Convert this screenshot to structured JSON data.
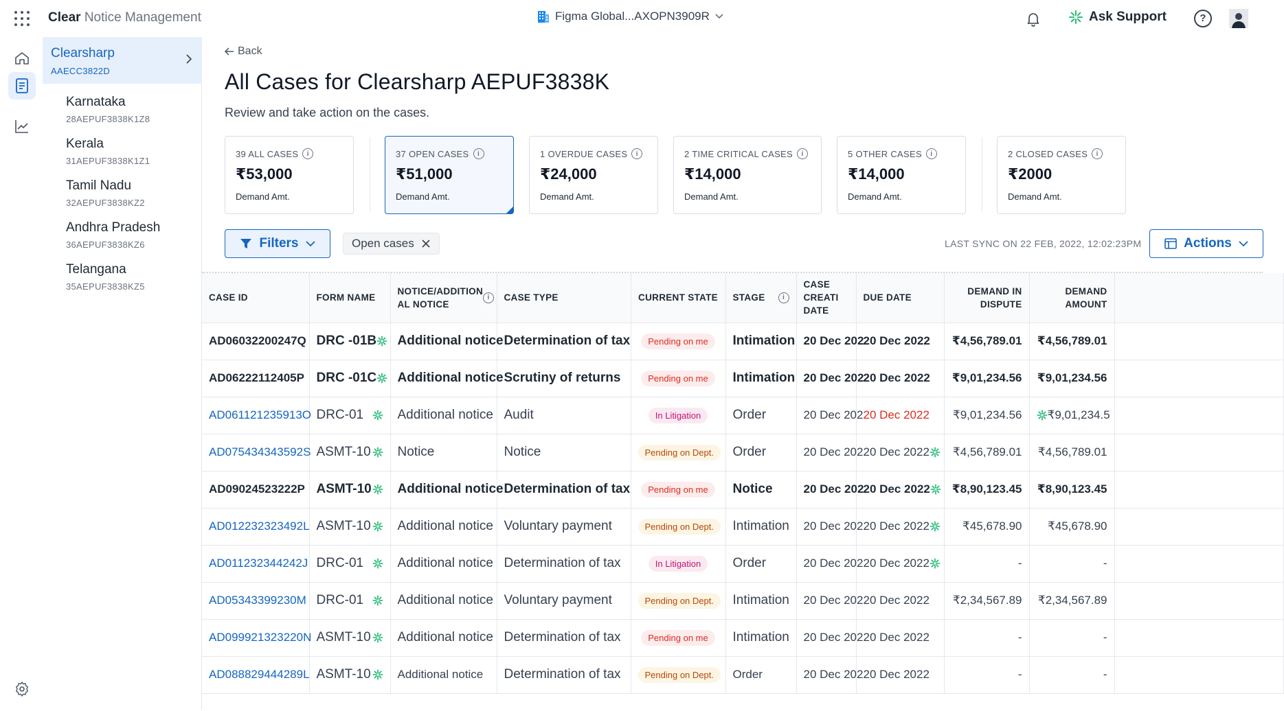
{
  "app": {
    "brand_bold": "Clear",
    "brand_light": "Notice Management",
    "org": "Figma Global...AXOPN3909R",
    "ask_support": "Ask Support",
    "help": "?"
  },
  "sidebar": {
    "active": {
      "name": "Clearsharp",
      "code": "AAECC3822D"
    },
    "states": [
      {
        "name": "Karnataka",
        "code": "28AEPUF3838K1Z8"
      },
      {
        "name": "Kerala",
        "code": "31AEPUF3838K1Z1"
      },
      {
        "name": "Tamil Nadu",
        "code": "32AEPUF3838KZ2"
      },
      {
        "name": "Andhra Pradesh",
        "code": "36AEPUF3838KZ6"
      },
      {
        "name": "Telangana",
        "code": "35AEPUF3838KZ5"
      }
    ]
  },
  "page": {
    "back": "Back",
    "title": "All Cases for Clearsharp AEPUF3838K",
    "subtitle": "Review and take action on the cases."
  },
  "cards": [
    {
      "label": "39 ALL CASES",
      "amount": "₹53,000",
      "sub": "Demand Amt."
    },
    {
      "label": "37 OPEN CASES",
      "amount": "₹51,000",
      "sub": "Demand Amt."
    },
    {
      "label": "1 OVERDUE CASES",
      "amount": "₹24,000",
      "sub": "Demand Amt."
    },
    {
      "label": "2 TIME CRITICAL CASES",
      "amount": "₹14,000",
      "sub": "Demand Amt."
    },
    {
      "label": "5 OTHER CASES",
      "amount": "₹14,000",
      "sub": "Demand Amt."
    },
    {
      "label": "2 CLOSED CASES",
      "amount": "₹2000",
      "sub": "Demand Amt."
    }
  ],
  "filterbar": {
    "filters": "Filters",
    "chip": "Open cases",
    "last_sync": "LAST SYNC ON 22 FEB, 2022, 12:02:23PM",
    "actions": "Actions"
  },
  "table": {
    "headers": {
      "case_id": "CASE ID",
      "form_name": "FORM NAME",
      "notice": "NOTICE/ADDITION AL NOTICE",
      "case_type": "CASE TYPE",
      "current_state": "CURRENT STATE",
      "stage": "STAGE",
      "creation_date": "CASE CREATI DATE",
      "due_date": "DUE DATE",
      "dispute": "DEMAND IN DISPUTE",
      "demand": "DEMAND AMOUNT"
    },
    "rows": [
      {
        "id": "AD06032200247Q",
        "form": "DRC -01B",
        "notice": "Additional notice",
        "type": "Determination of tax",
        "state": "Pending on me",
        "stage": "Intimation",
        "created": "20 Dec 202",
        "due": "20 Dec 2022",
        "dispute": "₹4,56,789.01",
        "demand": "₹4,56,789.01"
      },
      {
        "id": "AD06222112405P",
        "form": "DRC -01C",
        "notice": "Additional notice",
        "type": "Scrutiny of returns",
        "state": "Pending on me",
        "stage": "Intimation",
        "created": "20 Dec 202",
        "due": "20 Dec 2022",
        "dispute": "₹9,01,234.56",
        "demand": "₹9,01,234.56"
      },
      {
        "id": "AD061121235913O",
        "form": "DRC-01",
        "notice": "Additional notice",
        "type": "Audit",
        "state": "In Litigation",
        "stage": "Order",
        "created": "20 Dec 202",
        "due": "20 Dec 2022",
        "dispute": "₹9,01,234.56",
        "demand": "₹9,01,234.5"
      },
      {
        "id": "AD075434343592S",
        "form": "ASMT-10",
        "notice": "Notice",
        "type": "Notice",
        "state": "Pending on Dept.",
        "stage": "Order",
        "created": "20 Dec 202",
        "due": "20 Dec 2022",
        "dispute": "₹4,56,789.01",
        "demand": "₹4,56,789.01"
      },
      {
        "id": "AD09024523222P",
        "form": "ASMT-10",
        "notice": "Additional notice",
        "type": "Determination of tax",
        "state": "Pending on me",
        "stage": "Notice",
        "created": "20 Dec 202",
        "due": "20 Dec 2022",
        "dispute": "₹8,90,123.45",
        "demand": "₹8,90,123.45"
      },
      {
        "id": "AD012232323492L",
        "form": "ASMT-10",
        "notice": "Additional notice",
        "type": "Voluntary payment",
        "state": "Pending on Dept.",
        "stage": "Intimation",
        "created": "20 Dec 202",
        "due": "20 Dec 2022",
        "dispute": "₹45,678.90",
        "demand": "₹45,678.90"
      },
      {
        "id": "AD011232344242J",
        "form": "DRC-01",
        "notice": "Additional notice",
        "type": "Determination of tax",
        "state": "In Litigation",
        "stage": "Order",
        "created": "20 Dec 202",
        "due": "20 Dec 2022",
        "dispute": "-",
        "demand": "-"
      },
      {
        "id": "AD05343399230M",
        "form": "DRC-01",
        "notice": "Additional notice",
        "type": "Voluntary payment",
        "state": "Pending on Dept.",
        "stage": "Intimation",
        "created": "20 Dec 202",
        "due": "20 Dec 2022",
        "dispute": "₹2,34,567.89",
        "demand": "₹2,34,567.89"
      },
      {
        "id": "AD099921323220N",
        "form": "ASMT-10",
        "notice": "Additional notice",
        "type": "Determination of tax",
        "state": "Pending on me",
        "stage": "Intimation",
        "created": "20 Dec 202",
        "due": "20 Dec 2022",
        "dispute": "-",
        "demand": "-"
      },
      {
        "id": "AD088829444289L",
        "form": "ASMT-10",
        "notice": "Additional notice",
        "type": "Determination of tax",
        "state": "Pending on Dept.",
        "stage": "Order",
        "created": "20 Dec 202",
        "due": "20 Dec 2022",
        "dispute": "-",
        "demand": "-"
      }
    ]
  },
  "icons": {
    "grid": "apps-grid-icon",
    "building": "building-icon",
    "bell": "bell-icon",
    "sparkle": "sparkle-icon",
    "help": "help-icon",
    "home": "home-icon",
    "document": "document-icon",
    "chart": "trend-chart-icon",
    "settings": "gear-icon"
  },
  "colors": {
    "accent": "#1565c0",
    "active_bg": "#e6effc",
    "overdue": "#d92d20",
    "sparkle": "#12b76a"
  }
}
